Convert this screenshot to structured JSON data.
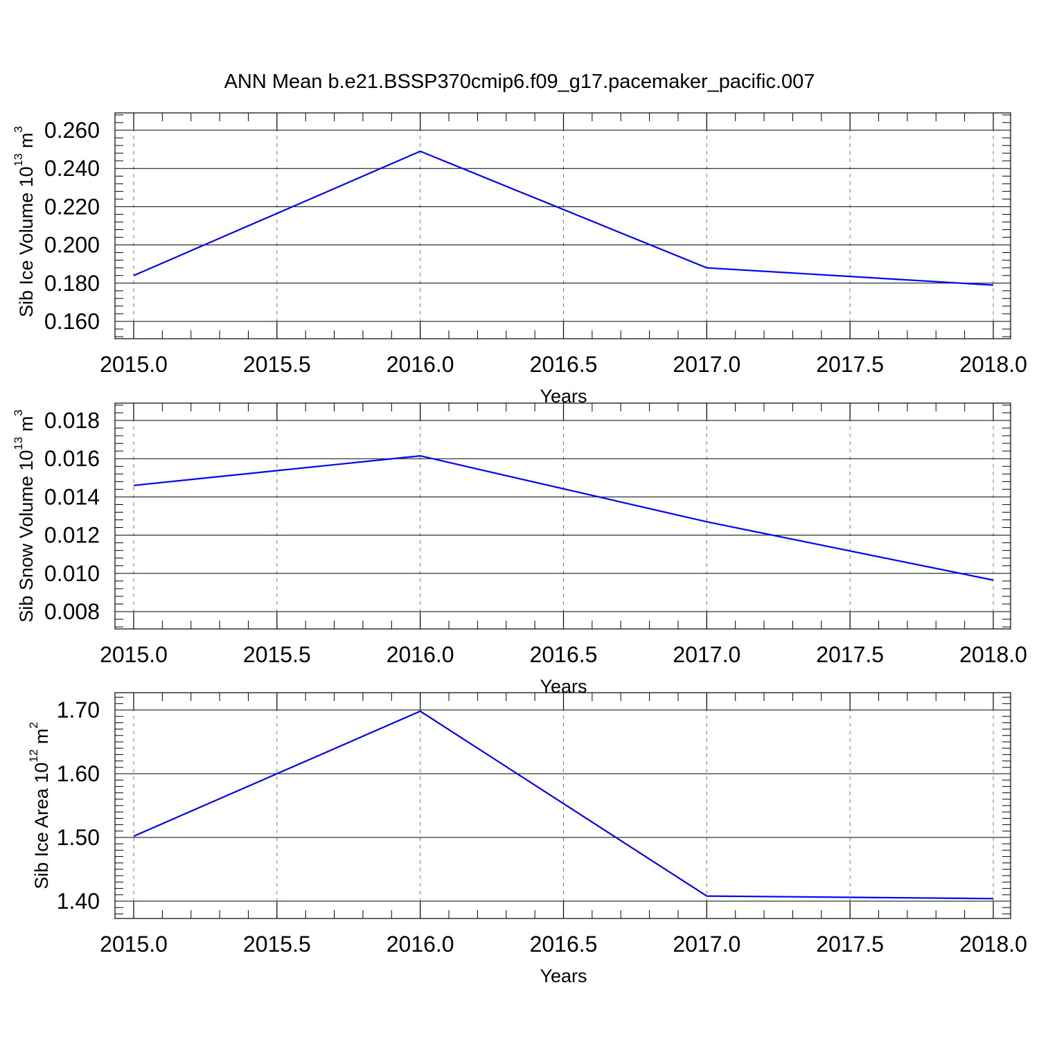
{
  "figure_title": "ANN Mean b.e21.BSSP370cmip6.f09_g17.pacemaker_pacific.007",
  "line_color": "#0000ff",
  "chart_data": [
    {
      "type": "line",
      "xlabel": "Years",
      "ylabel": {
        "text": "Sib Ice Volume 10",
        "exponent": "13",
        "unit": " m",
        "unit_exponent": "3"
      },
      "x": [
        2015.0,
        2016.0,
        2017.0,
        2018.0
      ],
      "series": [
        {
          "values": [
            0.184,
            0.249,
            0.188,
            0.179
          ]
        }
      ],
      "xlim": [
        2015.0,
        2018.0
      ],
      "ylim": [
        0.16,
        0.26
      ],
      "x_ticks": [
        "2015.0",
        "2015.5",
        "2016.0",
        "2016.5",
        "2017.0",
        "2017.5",
        "2018.0"
      ],
      "y_ticks": [
        "0.160",
        "0.180",
        "0.200",
        "0.220",
        "0.240",
        "0.260"
      ],
      "grid": "vertical dashed"
    },
    {
      "type": "line",
      "xlabel": "Years",
      "ylabel": {
        "text": "Sib Snow Volume 10",
        "exponent": "13",
        "unit": " m",
        "unit_exponent": "3"
      },
      "x": [
        2015.0,
        2016.0,
        2017.0,
        2018.0
      ],
      "series": [
        {
          "values": [
            0.0146,
            0.01615,
            0.0127,
            0.00965
          ]
        }
      ],
      "xlim": [
        2015.0,
        2018.0
      ],
      "ylim": [
        0.008,
        0.018
      ],
      "x_ticks": [
        "2015.0",
        "2015.5",
        "2016.0",
        "2016.5",
        "2017.0",
        "2017.5",
        "2018.0"
      ],
      "y_ticks": [
        "0.008",
        "0.010",
        "0.012",
        "0.014",
        "0.016",
        "0.018"
      ],
      "grid": "vertical dashed"
    },
    {
      "type": "line",
      "xlabel": "Years",
      "ylabel": {
        "text": "Sib Ice Area 10",
        "exponent": "12",
        "unit": " m",
        "unit_exponent": "2"
      },
      "x": [
        2015.0,
        2016.0,
        2017.0,
        2018.0
      ],
      "series": [
        {
          "values": [
            1.502,
            1.698,
            1.408,
            1.404
          ]
        }
      ],
      "xlim": [
        2015.0,
        2018.0
      ],
      "ylim": [
        1.4,
        1.7
      ],
      "x_ticks": [
        "2015.0",
        "2015.5",
        "2016.0",
        "2016.5",
        "2017.0",
        "2017.5",
        "2018.0"
      ],
      "y_ticks": [
        "1.40",
        "1.50",
        "1.60",
        "1.70"
      ],
      "grid": "vertical dashed"
    }
  ]
}
